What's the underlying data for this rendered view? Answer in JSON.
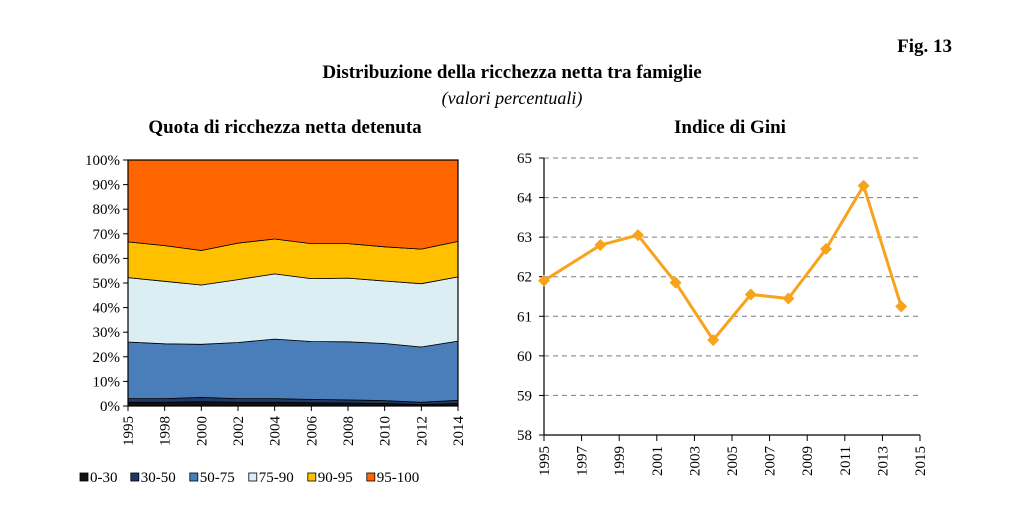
{
  "fig_label": "Fig. 13",
  "title": "Distribuzione della ricchezza netta tra famiglie",
  "subtitle": "(valori percentuali)",
  "chart_data": [
    {
      "type": "area",
      "stacked": true,
      "title": "Quota di ricchezza netta detenuta",
      "x": [
        "1995",
        "1998",
        "2000",
        "2002",
        "2004",
        "2006",
        "2008",
        "2010",
        "2012",
        "2014"
      ],
      "ylim": [
        0,
        100
      ],
      "y_ticks": [
        "0%",
        "10%",
        "20%",
        "30%",
        "40%",
        "50%",
        "60%",
        "70%",
        "80%",
        "90%",
        "100%"
      ],
      "series": [
        {
          "name": "0-30",
          "color": "#111111",
          "values": [
            1.5,
            1.5,
            1.8,
            1.5,
            1.5,
            1.3,
            1.2,
            1.0,
            0.6,
            1.0
          ]
        },
        {
          "name": "30-50",
          "color": "#1f3864",
          "values": [
            1.5,
            1.5,
            1.7,
            1.5,
            1.5,
            1.4,
            1.3,
            1.2,
            0.9,
            1.3
          ]
        },
        {
          "name": "50-75",
          "color": "#4a7ebb",
          "values": [
            23.0,
            22.3,
            21.6,
            22.8,
            24.2,
            23.5,
            23.6,
            23.2,
            22.5,
            24.1
          ]
        },
        {
          "name": "75-90",
          "color": "#daeef3",
          "values": [
            26.2,
            25.4,
            24.1,
            25.6,
            26.5,
            25.6,
            25.9,
            25.4,
            25.7,
            26.1
          ]
        },
        {
          "name": "90-95",
          "color": "#ffc000",
          "values": [
            14.5,
            14.5,
            14.0,
            14.8,
            14.2,
            14.2,
            14.0,
            13.9,
            14.1,
            14.4
          ]
        },
        {
          "name": "95-100",
          "color": "#ff6600",
          "values": [
            33.3,
            34.8,
            36.8,
            33.8,
            32.1,
            34.0,
            34.0,
            35.3,
            36.2,
            33.1
          ]
        }
      ],
      "legend_position": "bottom",
      "grid": false
    },
    {
      "type": "line",
      "title": "Indice di Gini",
      "color": "#f7a31c",
      "x": [
        1995,
        1998,
        2000,
        2002,
        2004,
        2006,
        2008,
        2010,
        2012,
        2014
      ],
      "y": [
        61.9,
        62.8,
        63.05,
        61.85,
        60.4,
        61.55,
        61.45,
        62.7,
        64.3,
        61.25
      ],
      "ylim": [
        58,
        65
      ],
      "y_ticks": [
        "58",
        "59",
        "60",
        "61",
        "62",
        "63",
        "64",
        "65"
      ],
      "x_ticks": [
        "1995",
        "1997",
        "1999",
        "2001",
        "2003",
        "2005",
        "2007",
        "2009",
        "2011",
        "2013",
        "2015"
      ],
      "grid": true,
      "grid_style": "dashed"
    }
  ]
}
